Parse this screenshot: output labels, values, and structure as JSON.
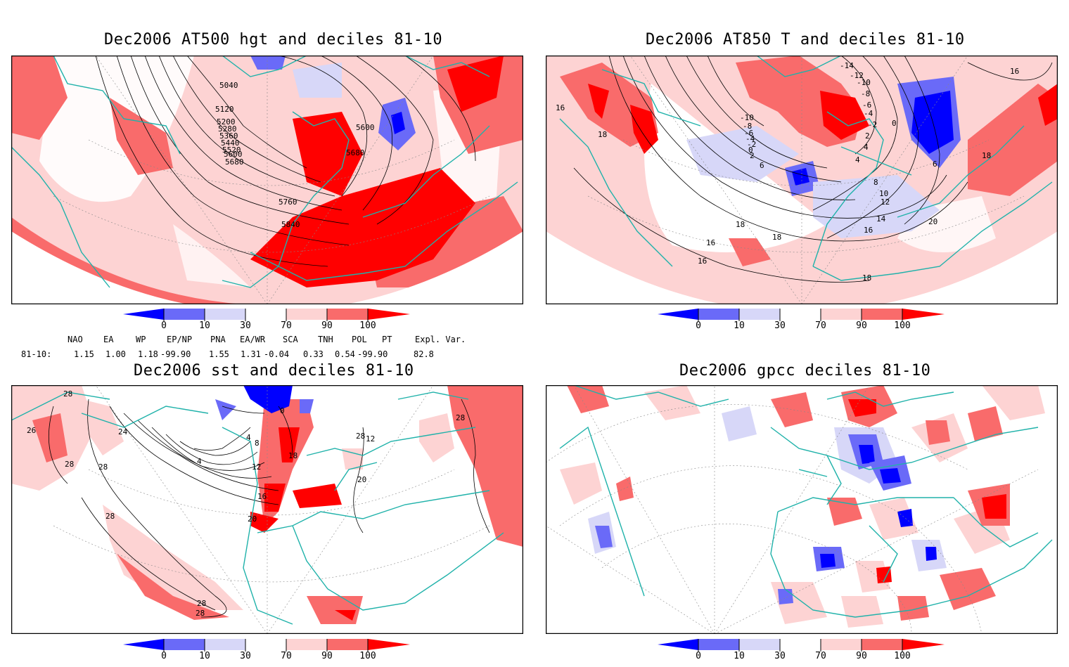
{
  "panels": [
    {
      "title": "Dec2006 AT500 hgt and deciles 81-10",
      "contour_labels": [
        "5040",
        "5120",
        "5200",
        "5280",
        "5360",
        "5440",
        "5520",
        "5600",
        "5680",
        "5600",
        "5680",
        "5760",
        "5840"
      ]
    },
    {
      "title": "Dec2006 AT850 T and deciles 81-10",
      "contour_labels": [
        "16",
        "18",
        "-10",
        "-8",
        "-6",
        "-4",
        "-2",
        "0",
        "2",
        "4",
        "6",
        "8",
        "10",
        "12",
        "14",
        "16",
        "18",
        "20",
        "16",
        "18",
        "16",
        "-14",
        "-12",
        "-10",
        "-8",
        "-6",
        "-4",
        "-2",
        "0",
        "2",
        "4",
        "6",
        "18",
        "16",
        "18"
      ]
    },
    {
      "title": "Dec2006 sst and deciles 81-10",
      "contour_labels": [
        "28",
        "26",
        "28",
        "28",
        "28",
        "24",
        "0",
        "4",
        "8",
        "12",
        "4",
        "16",
        "20",
        "18",
        "28",
        "28",
        "28",
        "20",
        "12",
        "28"
      ]
    },
    {
      "title": "Dec2006 gpcc deciles 81-10",
      "contour_labels": []
    }
  ],
  "colorbar": {
    "labels": [
      "0",
      "10",
      "30",
      "70",
      "90",
      "100"
    ],
    "colors": [
      "#0000ff",
      "#6a6af8",
      "#d7d7f8",
      "#ffffff",
      "#fdd3d3",
      "#f96b6b",
      "#ff0000"
    ]
  },
  "teleconnections": {
    "headers": [
      "NAO",
      "EA",
      "WP",
      "EP/NP",
      "PNA",
      "EA/WR",
      "SCA",
      "TNH",
      "POL",
      "PT",
      "Expl. Var."
    ],
    "row_label": "81-10:",
    "values": [
      "1.15",
      "1.00",
      "1.18",
      "-99.90",
      "1.55",
      "1.31",
      "-0.04",
      "0.33",
      "0.54",
      "-99.90",
      "82.8"
    ]
  },
  "colors": {
    "coast": "#20b2aa",
    "contour": "#000000",
    "frame": "#000000"
  }
}
